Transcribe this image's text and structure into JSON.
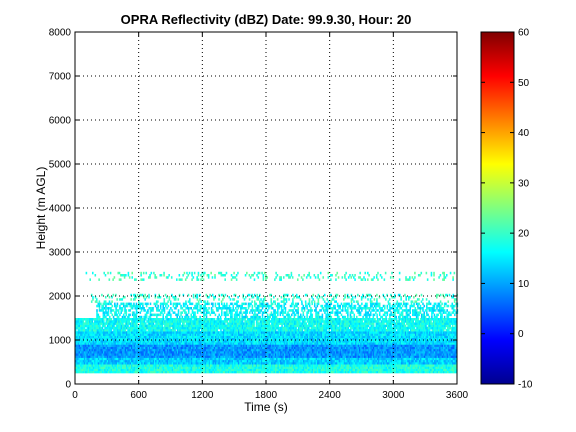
{
  "chart_data": {
    "type": "heatmap",
    "title": "OPRA Reflectivity (dBZ)  Date: 99.9.30, Hour: 20",
    "xlabel": "Time (s)",
    "ylabel": "Height (m AGL)",
    "xlim": [
      0,
      3600
    ],
    "ylim": [
      0,
      8000
    ],
    "x_ticks": [
      "0",
      "600",
      "1200",
      "1800",
      "2400",
      "3000",
      "3600"
    ],
    "y_ticks": [
      "0",
      "1000",
      "2000",
      "3000",
      "4000",
      "5000",
      "6000",
      "7000",
      "8000"
    ],
    "grid": true,
    "colormap": "jet",
    "colorbar": {
      "range": [
        -10,
        60
      ],
      "ticks": [
        "-10",
        "0",
        "10",
        "20",
        "30",
        "40",
        "50",
        "60"
      ]
    },
    "layers": [
      {
        "height_range": [
          250,
          450
        ],
        "time_range": [
          0,
          3600
        ],
        "dbz": 18,
        "coverage": 1.0
      },
      {
        "height_range": [
          450,
          600
        ],
        "time_range": [
          0,
          3600
        ],
        "dbz": 13,
        "coverage": 1.0
      },
      {
        "height_range": [
          600,
          900
        ],
        "time_range": [
          0,
          3600
        ],
        "dbz": 9,
        "coverage": 1.0
      },
      {
        "height_range": [
          900,
          1200
        ],
        "time_range": [
          0,
          3600
        ],
        "dbz": 14,
        "coverage": 1.0
      },
      {
        "height_range": [
          1200,
          1500
        ],
        "time_range": [
          0,
          3600
        ],
        "dbz": 17,
        "coverage": 0.95
      },
      {
        "height_range": [
          1500,
          1850
        ],
        "time_range": [
          200,
          3600
        ],
        "dbz": 16,
        "coverage": 0.55
      },
      {
        "height_range": [
          1850,
          2050
        ],
        "time_range": [
          150,
          3600
        ],
        "dbz": 19,
        "coverage": 0.25
      },
      {
        "height_range": [
          2350,
          2550
        ],
        "time_range": [
          100,
          3600
        ],
        "dbz": 20,
        "coverage": 0.2
      }
    ]
  }
}
